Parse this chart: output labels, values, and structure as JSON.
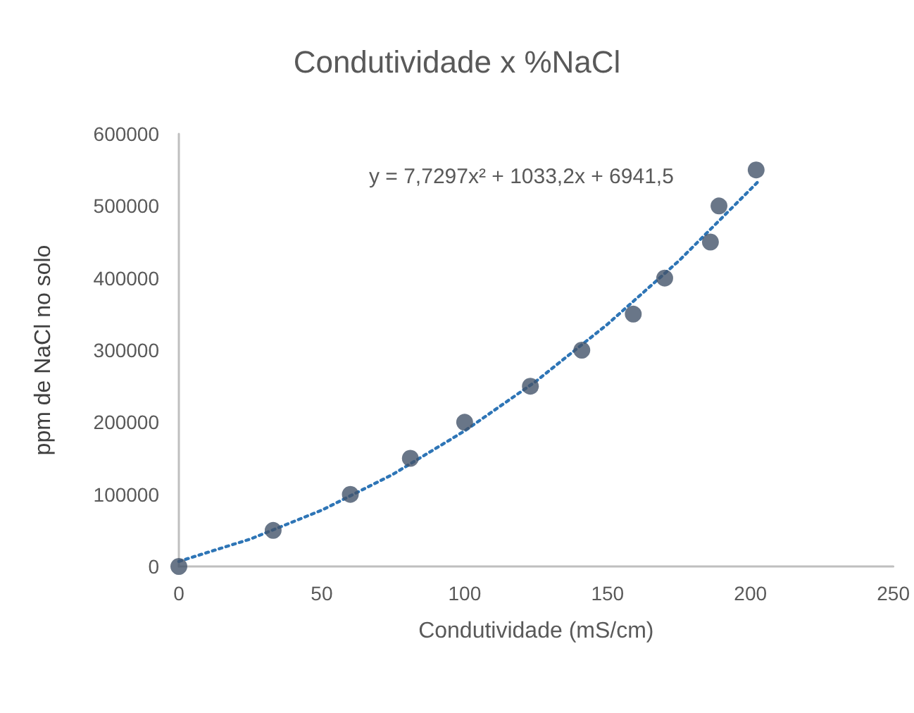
{
  "chart_data": {
    "type": "scatter",
    "title": "Condutividade x %NaCl",
    "xlabel": "Condutividade (mS/cm)",
    "ylabel": "ppm de NaCl no solo",
    "annotations": [
      "y = 7,7297x² + 1033,2x + 6941,5"
    ],
    "series": [
      {
        "color": "#44546a",
        "marker": "circle",
        "x": [
          0,
          33,
          60,
          81,
          100,
          123,
          141,
          159,
          170,
          186,
          189,
          202
        ],
        "values": [
          0,
          50000,
          100000,
          150000,
          200000,
          250000,
          300000,
          350000,
          400000,
          450000,
          500000,
          550000
        ]
      },
      {
        "type": "line",
        "color": "#2e75b6",
        "line_style": "dotted",
        "marker": "none",
        "x": [
          0,
          25,
          50,
          75,
          100,
          125,
          150,
          175,
          200,
          203
        ],
        "values": [
          7000,
          38000,
          78000,
          128000,
          188000,
          257000,
          336000,
          424000,
          523000,
          535000
        ]
      }
    ],
    "xlim": [
      0,
      250
    ],
    "xticks": [
      0,
      50,
      100,
      150,
      200,
      250
    ],
    "ylim": [
      0,
      600000
    ],
    "yticks": [
      0,
      100000,
      200000,
      300000,
      400000,
      500000,
      600000
    ],
    "grid": false
  }
}
